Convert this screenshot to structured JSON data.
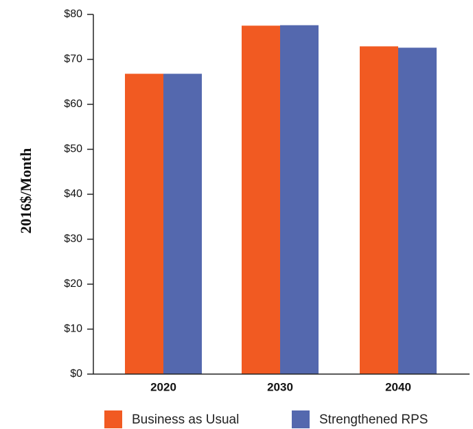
{
  "chart_data": {
    "type": "bar",
    "ylabel": "2016$/Month",
    "xlabel": "",
    "categories": [
      "2020",
      "2030",
      "2040"
    ],
    "series": [
      {
        "name": "Business as Usual",
        "color": "#f15a22",
        "values": [
          66.8,
          77.5,
          72.9
        ]
      },
      {
        "name": "Strengthened RPS",
        "color": "#5468ae",
        "values": [
          66.8,
          77.6,
          72.6
        ]
      }
    ],
    "ylim": [
      0,
      80
    ],
    "yticks": [
      0,
      10,
      20,
      30,
      40,
      50,
      60,
      70,
      80
    ],
    "ytick_labels": [
      "$0",
      "$10",
      "$20",
      "$30",
      "$40",
      "$50",
      "$60",
      "$70",
      "$80"
    ],
    "grid": false,
    "legend_position": "bottom"
  }
}
